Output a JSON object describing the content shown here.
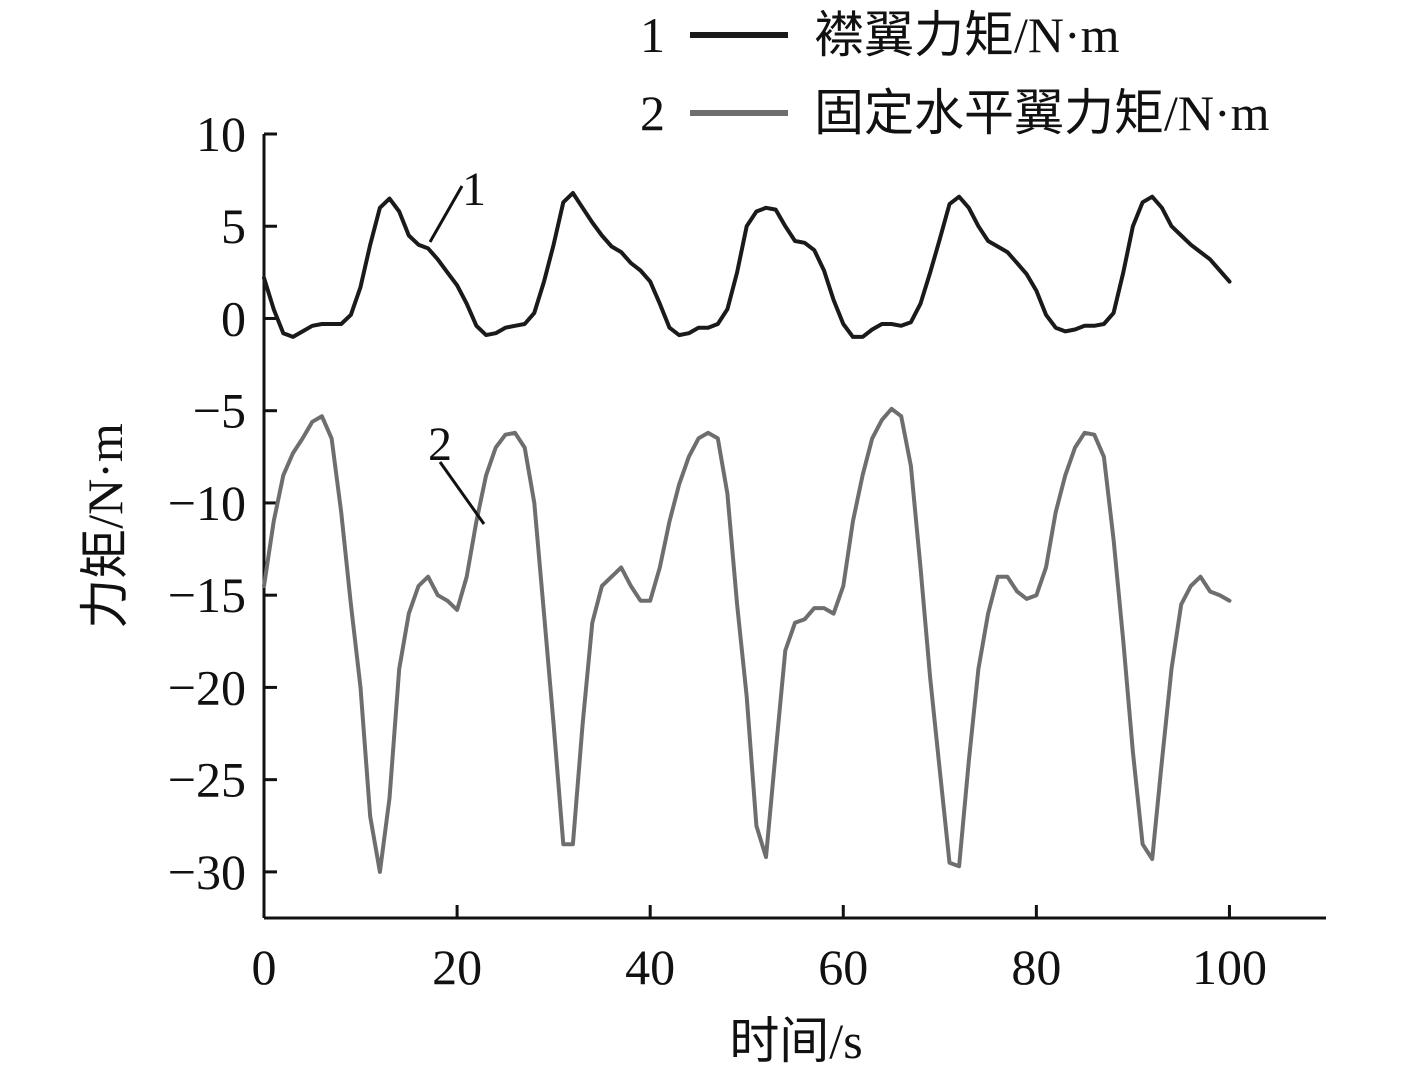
{
  "chart_data": {
    "type": "line",
    "xlabel": "时间/s",
    "ylabel": "力矩/N·m",
    "xlim": [
      0,
      110
    ],
    "ylim": [
      -32.5,
      10
    ],
    "xticks": [
      0,
      20,
      40,
      60,
      80,
      100
    ],
    "yticks": [
      10,
      5,
      0,
      -5,
      -10,
      -15,
      -20,
      -25,
      -30
    ],
    "xtick_labels": [
      "0",
      "20",
      "40",
      "60",
      "80",
      "100"
    ],
    "ytick_labels": [
      "10",
      "5",
      "0",
      "−5",
      "−10",
      "−15",
      "−20",
      "−25",
      "−30"
    ],
    "grid": false,
    "legend_position": "top-right",
    "series": [
      {
        "name": "襟翼力矩/N·m",
        "legend_number": "1",
        "annotation": "1",
        "color": "#1a1a1a",
        "x": [
          0,
          1,
          2,
          3,
          4,
          5,
          6,
          7,
          8,
          9,
          10,
          11,
          12,
          13,
          14,
          15,
          16,
          17,
          18,
          19,
          20,
          21,
          22,
          23,
          24,
          25,
          26,
          27,
          28,
          29,
          30,
          31,
          32,
          33,
          34,
          35,
          36,
          37,
          38,
          39,
          40,
          41,
          42,
          43,
          44,
          45,
          46,
          47,
          48,
          49,
          50,
          51,
          52,
          53,
          54,
          55,
          56,
          57,
          58,
          59,
          60,
          61,
          62,
          63,
          64,
          65,
          66,
          67,
          68,
          69,
          70,
          71,
          72,
          73,
          74,
          75,
          76,
          77,
          78,
          79,
          80,
          81,
          82,
          83,
          84,
          85,
          86,
          87,
          88,
          89,
          90,
          91,
          92,
          93,
          94,
          95,
          96,
          97,
          98,
          99,
          100
        ],
        "y": [
          2.2,
          0.5,
          -0.8,
          -1.0,
          -0.7,
          -0.4,
          -0.3,
          -0.3,
          -0.3,
          0.2,
          1.7,
          4.0,
          6.0,
          6.5,
          5.8,
          4.5,
          4.0,
          3.8,
          3.2,
          2.5,
          1.8,
          0.8,
          -0.4,
          -0.9,
          -0.8,
          -0.5,
          -0.4,
          -0.3,
          0.3,
          2.0,
          4.0,
          6.3,
          6.8,
          6.0,
          5.2,
          4.5,
          3.9,
          3.6,
          3.0,
          2.6,
          2.0,
          0.8,
          -0.5,
          -0.9,
          -0.8,
          -0.5,
          -0.5,
          -0.3,
          0.5,
          2.5,
          5.0,
          5.8,
          6.0,
          5.9,
          5.0,
          4.2,
          4.1,
          3.7,
          2.6,
          1.0,
          -0.3,
          -1.0,
          -1.0,
          -0.6,
          -0.3,
          -0.3,
          -0.4,
          -0.2,
          0.8,
          2.5,
          4.3,
          6.2,
          6.6,
          6.0,
          5.0,
          4.2,
          3.9,
          3.6,
          3.0,
          2.4,
          1.5,
          0.2,
          -0.5,
          -0.7,
          -0.6,
          -0.4,
          -0.4,
          -0.3,
          0.3,
          2.5,
          5.0,
          6.3,
          6.6,
          6.0,
          5.0,
          4.5,
          4.0,
          3.6,
          3.2,
          2.6,
          2.0
        ]
      },
      {
        "name": "固定水平翼力矩/N·m",
        "legend_number": "2",
        "annotation": "2",
        "color": "#6e6e6e",
        "x": [
          0,
          1,
          2,
          3,
          4,
          5,
          6,
          7,
          8,
          9,
          10,
          11,
          12,
          13,
          14,
          15,
          16,
          17,
          18,
          19,
          20,
          21,
          22,
          23,
          24,
          25,
          26,
          27,
          28,
          29,
          30,
          31,
          32,
          33,
          34,
          35,
          36,
          37,
          38,
          39,
          40,
          41,
          42,
          43,
          44,
          45,
          46,
          47,
          48,
          49,
          50,
          51,
          52,
          53,
          54,
          55,
          56,
          57,
          58,
          59,
          60,
          61,
          62,
          63,
          64,
          65,
          66,
          67,
          68,
          69,
          70,
          71,
          72,
          73,
          74,
          75,
          76,
          77,
          78,
          79,
          80,
          81,
          82,
          83,
          84,
          85,
          86,
          87,
          88,
          89,
          90,
          91,
          92,
          93,
          94,
          95,
          96,
          97,
          98,
          99,
          100
        ],
        "y": [
          -14.5,
          -11.0,
          -8.5,
          -7.3,
          -6.5,
          -5.6,
          -5.3,
          -6.5,
          -10.5,
          -15.5,
          -20.0,
          -27.0,
          -30.0,
          -26.0,
          -19.0,
          -16.0,
          -14.5,
          -14.0,
          -15.0,
          -15.3,
          -15.8,
          -14.0,
          -11.0,
          -8.5,
          -7.0,
          -6.3,
          -6.2,
          -7.0,
          -10.0,
          -16.0,
          -22.0,
          -28.5,
          -28.5,
          -22.0,
          -16.5,
          -14.5,
          -14.0,
          -13.5,
          -14.5,
          -15.3,
          -15.3,
          -13.5,
          -11.0,
          -9.0,
          -7.5,
          -6.5,
          -6.2,
          -6.5,
          -9.5,
          -15.5,
          -20.5,
          -27.5,
          -29.2,
          -23.5,
          -18.0,
          -16.5,
          -16.3,
          -15.7,
          -15.7,
          -16.0,
          -14.5,
          -11.0,
          -8.5,
          -6.5,
          -5.5,
          -4.9,
          -5.3,
          -8.0,
          -13.5,
          -19.5,
          -24.5,
          -29.5,
          -29.7,
          -24.0,
          -19.0,
          -16.0,
          -14.0,
          -14.0,
          -14.8,
          -15.2,
          -15.0,
          -13.5,
          -10.5,
          -8.5,
          -7.0,
          -6.2,
          -6.3,
          -7.5,
          -12.0,
          -17.5,
          -23.5,
          -28.5,
          -29.3,
          -24.0,
          -19.0,
          -15.5,
          -14.5,
          -14.0,
          -14.8,
          -15.0,
          -15.3
        ]
      }
    ]
  }
}
